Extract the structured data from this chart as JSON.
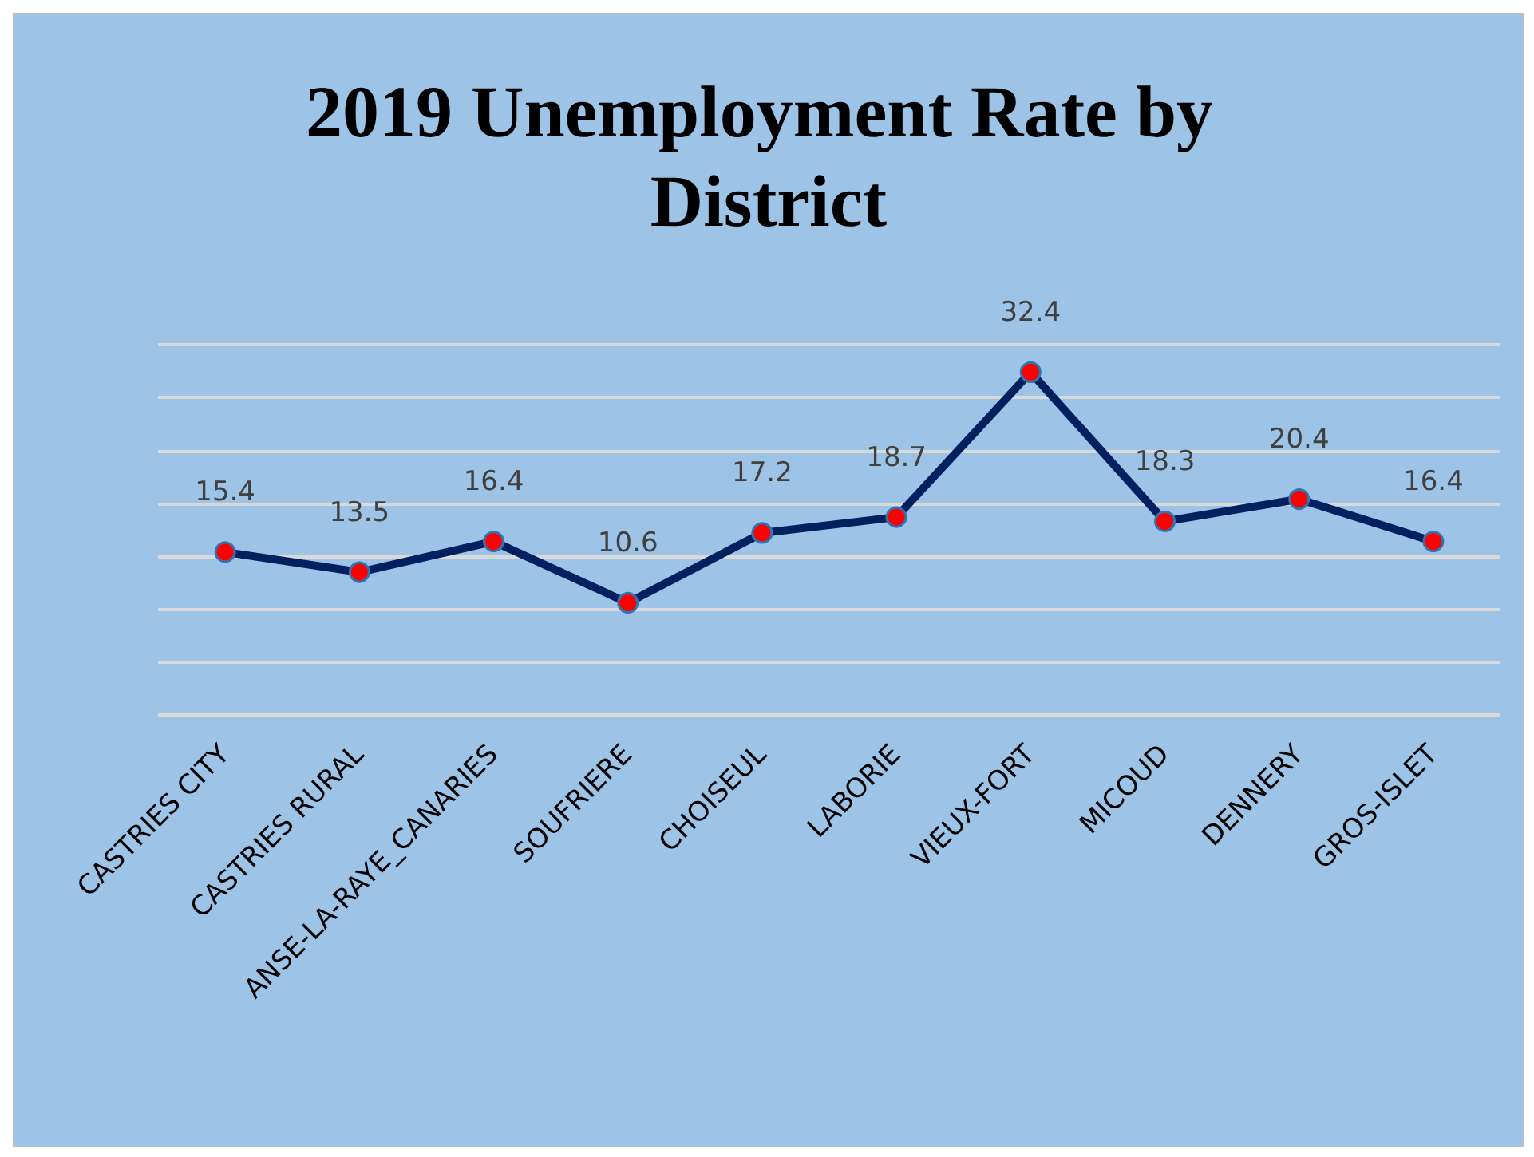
{
  "chart_data": {
    "type": "line",
    "title": "2019 Unemployment Rate by District",
    "categories": [
      "CASTRIES CITY",
      "CASTRIES RURAL",
      "ANSE-LA-RAYE_CANARIES",
      "SOUFRIERE",
      "CHOISEUL",
      "LABORIE",
      "VIEUX-FORT",
      "MICOUD",
      "DENNERY",
      "GROS-ISLET"
    ],
    "series": [
      {
        "color": "#002060",
        "colors": [
          "#ff0000",
          "#ff0000",
          "#ff0000",
          "#ff0000",
          "#ff0000",
          "#ff0000",
          "#ff0000",
          "#ff0000",
          "#ff0000",
          "#ff0000"
        ],
        "values": [
          15.4,
          13.5,
          16.4,
          10.6,
          17.2,
          18.7,
          32.4,
          18.3,
          20.4,
          16.4
        ]
      }
    ],
    "ylim": [
      0,
      35
    ],
    "yticks": [
      {
        "value": 0,
        "label": null
      },
      {
        "value": 5,
        "label": null
      },
      {
        "value": 10,
        "label": null
      },
      {
        "value": 15,
        "label": null
      },
      {
        "value": 20,
        "label": null
      },
      {
        "value": 25,
        "label": null
      },
      {
        "value": 30,
        "label": null
      },
      {
        "value": 35,
        "label": null
      }
    ],
    "tick_labels": "x",
    "grid": "y",
    "marker": "circle",
    "line_style": "solid",
    "data_labels": true
  }
}
